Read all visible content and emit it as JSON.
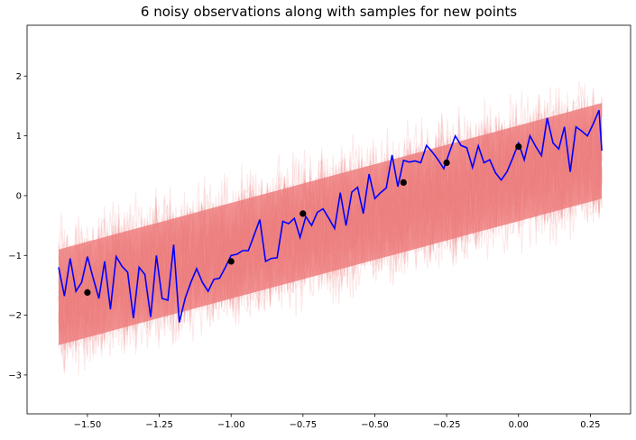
{
  "chart_data": {
    "type": "line",
    "title": "6 noisy observations along with samples for new points",
    "xlabel": "",
    "ylabel": "",
    "xlim": [
      -1.71,
      0.39
    ],
    "ylim": [
      -3.65,
      2.85
    ],
    "xticks": [
      -1.5,
      -1.25,
      -1.0,
      -0.75,
      -0.5,
      -0.25,
      0.0,
      0.25
    ],
    "xtick_labels": [
      "−1.50",
      "−1.25",
      "−1.00",
      "−0.75",
      "−0.50",
      "−0.25",
      "0.00",
      "0.25"
    ],
    "yticks": [
      -3,
      -2,
      -1,
      0,
      1,
      2
    ],
    "ytick_labels": [
      "−3",
      "−2",
      "−1",
      "0",
      "1",
      "2"
    ],
    "grid": false,
    "colors": {
      "samples": "#f08080",
      "sample_line": "#0000ff",
      "observations": "#000000"
    },
    "samples_band": {
      "x": [
        -1.6,
        0.29
      ],
      "mean_start": -1.7,
      "mean_end": 0.75,
      "typical_halfwidth": 0.8,
      "max_halfwidth": 1.4
    },
    "series": [
      {
        "type": "line",
        "x": [
          -1.6,
          -1.58,
          -1.56,
          -1.54,
          -1.52,
          -1.5,
          -1.48,
          -1.46,
          -1.44,
          -1.42,
          -1.4,
          -1.38,
          -1.36,
          -1.34,
          -1.32,
          -1.3,
          -1.28,
          -1.26,
          -1.24,
          -1.22,
          -1.2,
          -1.18,
          -1.16,
          -1.14,
          -1.12,
          -1.1,
          -1.08,
          -1.06,
          -1.04,
          -1.02,
          -1.0,
          -0.98,
          -0.96,
          -0.94,
          -0.92,
          -0.9,
          -0.88,
          -0.86,
          -0.84,
          -0.82,
          -0.8,
          -0.78,
          -0.76,
          -0.74,
          -0.72,
          -0.7,
          -0.68,
          -0.66,
          -0.64,
          -0.62,
          -0.6,
          -0.58,
          -0.56,
          -0.54,
          -0.52,
          -0.5,
          -0.48,
          -0.46,
          -0.44,
          -0.42,
          -0.4,
          -0.38,
          -0.36,
          -0.34,
          -0.32,
          -0.3,
          -0.28,
          -0.26,
          -0.24,
          -0.22,
          -0.2,
          -0.18,
          -0.16,
          -0.14,
          -0.12,
          -0.1,
          -0.08,
          -0.06,
          -0.04,
          -0.02,
          0.0,
          0.02,
          0.04,
          0.06,
          0.08,
          0.1,
          0.12,
          0.14,
          0.16,
          0.18,
          0.2,
          0.22,
          0.24,
          0.26,
          0.28,
          0.29
        ],
        "values": [
          -1.2,
          -1.68,
          -1.05,
          -1.6,
          -1.45,
          -1.02,
          -1.38,
          -1.72,
          -1.1,
          -1.9,
          -1.02,
          -1.18,
          -1.28,
          -2.05,
          -1.2,
          -1.32,
          -2.03,
          -1.0,
          -1.72,
          -1.75,
          -0.82,
          -2.12,
          -1.72,
          -1.45,
          -1.22,
          -1.45,
          -1.6,
          -1.4,
          -1.38,
          -1.2,
          -1.0,
          -0.98,
          -0.92,
          -0.92,
          -0.66,
          -0.4,
          -1.1,
          -1.05,
          -1.04,
          -0.43,
          -0.47,
          -0.38,
          -0.7,
          -0.35,
          -0.5,
          -0.28,
          -0.22,
          -0.38,
          -0.55,
          0.05,
          -0.5,
          0.06,
          0.14,
          -0.3,
          0.36,
          -0.05,
          0.05,
          0.13,
          0.68,
          0.15,
          0.59,
          0.56,
          0.58,
          0.55,
          0.84,
          0.73,
          0.6,
          0.45,
          0.73,
          1.0,
          0.84,
          0.8,
          0.47,
          0.83,
          0.55,
          0.6,
          0.38,
          0.26,
          0.4,
          0.63,
          0.88,
          0.6,
          1.0,
          0.82,
          0.67,
          1.3,
          0.88,
          0.78,
          1.15,
          0.4,
          1.15,
          1.08,
          1.0,
          1.2,
          1.43,
          0.75
        ]
      },
      {
        "type": "scatter",
        "x": [
          -1.5,
          -1.0,
          -0.75,
          -0.4,
          -0.25,
          0.0
        ],
        "values": [
          -1.62,
          -1.1,
          -0.3,
          0.22,
          0.55,
          0.82
        ]
      }
    ]
  }
}
